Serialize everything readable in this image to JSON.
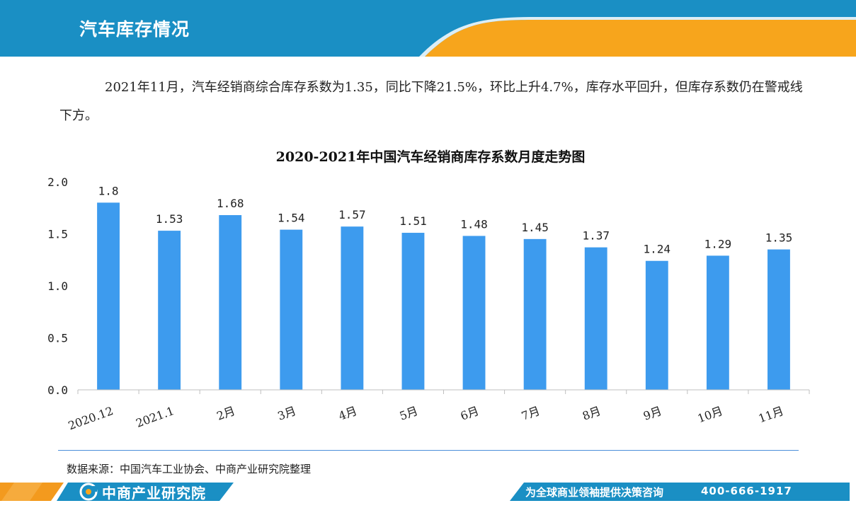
{
  "header": {
    "title": "汽车库存情况"
  },
  "intro": {
    "text": "2021年11月，汽车经销商综合库存系数为1.35，同比下降21.5%，环比上升4.7%，库存水平回升，但库存系数仍在警戒线下方。"
  },
  "chart_data": {
    "type": "bar",
    "title": "2020-2021年中国汽车经销商库存系数月度走势图",
    "xlabel": "",
    "ylabel": "",
    "categories": [
      "2020.12",
      "2021.1",
      "2月",
      "3月",
      "4月",
      "5月",
      "6月",
      "7月",
      "8月",
      "9月",
      "10月",
      "11月"
    ],
    "values": [
      1.8,
      1.53,
      1.68,
      1.54,
      1.57,
      1.51,
      1.48,
      1.45,
      1.37,
      1.24,
      1.29,
      1.35
    ],
    "value_labels": [
      "1.8",
      "1.53",
      "1.68",
      "1.54",
      "1.57",
      "1.51",
      "1.48",
      "1.45",
      "1.37",
      "1.24",
      "1.29",
      "1.35"
    ],
    "ylim": [
      0,
      2.0
    ],
    "yticks": [
      "0.0",
      "0.5",
      "1.0",
      "1.5",
      "2.0"
    ],
    "grid": false,
    "bar_color": "#3d9bee"
  },
  "source": {
    "text": "数据来源：中国汽车工业协会、中商产业研究院整理"
  },
  "footer": {
    "logo_text": "中商产业研究院",
    "slogan": "为全球商业领袖提供决策咨询",
    "phone": "400-666-1917"
  },
  "colors": {
    "banner_blue": "#1a8fc4",
    "banner_orange": "#f7a51c",
    "footer_blue": "#1a8fc4"
  }
}
